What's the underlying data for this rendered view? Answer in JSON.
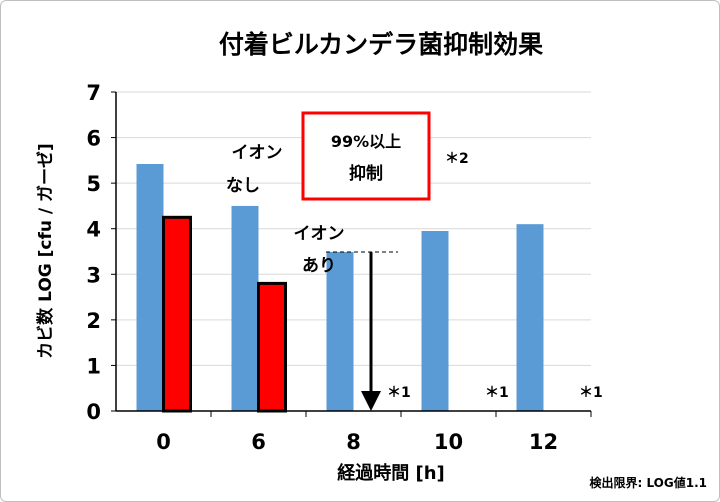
{
  "chart_data": {
    "type": "bar",
    "title": "付着ビルカンデラ菌抑制効果",
    "xlabel": "経過時間 [h]",
    "ylabel": "カビ数 LOG [cfu / ガーゼ]",
    "categories": [
      "0",
      "6",
      "8",
      "10",
      "12"
    ],
    "ylim": [
      0,
      7
    ],
    "yticks": [
      "0",
      "1",
      "2",
      "3",
      "4",
      "5",
      "6",
      "7"
    ],
    "grid": true,
    "series": [
      {
        "name": "イオンなし",
        "color": "#5b9bd5",
        "values": [
          5.42,
          4.5,
          3.49,
          3.95,
          4.1
        ]
      },
      {
        "name": "イオンあり",
        "color": "#ff0000",
        "values": [
          4.25,
          2.8,
          null,
          null,
          null
        ]
      }
    ],
    "annotations": {
      "label_no_ion": [
        "イオン",
        "なし"
      ],
      "label_ion": [
        "イオン",
        "あり"
      ],
      "box": [
        "99%以上",
        "抑制"
      ],
      "box_color": "#ff0000",
      "note2": "＊2",
      "note1": "＊1",
      "detection_limit": "検出限界: LOG値1.1"
    }
  }
}
